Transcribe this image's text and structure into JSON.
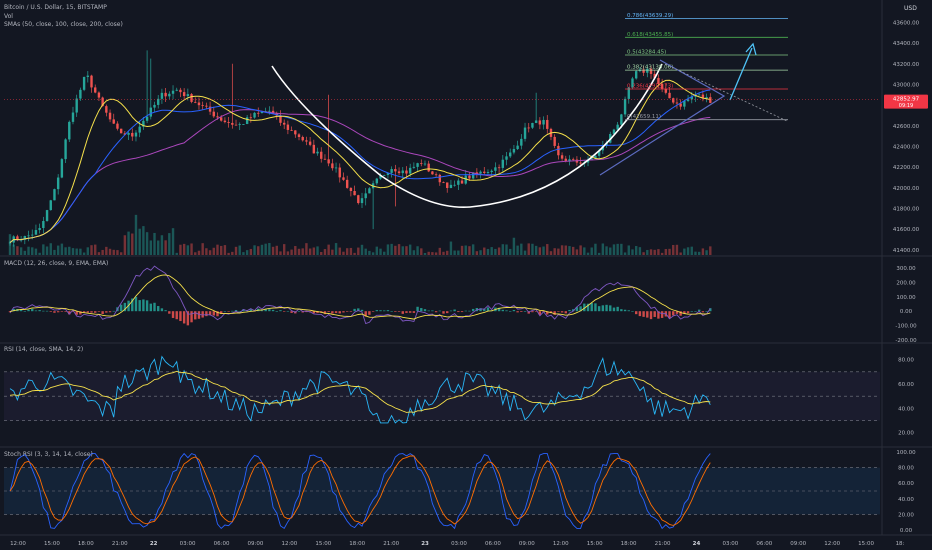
{
  "header": {
    "symbol": "Bitcoin / U.S. Dollar, 15, BITSTAMP",
    "vol": "Vol",
    "smas": "SMAs (50, close, 100, close, 200, close)",
    "currency": "USD"
  },
  "indicators": {
    "macd": "MACD (12, 26, close, 9, EMA, EMA)",
    "rsi": "RSI (14, close, SMA, 14, 2)",
    "stoch": "Stoch RSI (3, 3, 14, 14, close)"
  },
  "price": {
    "last": "42852.97",
    "countdown": "09:19",
    "ticks": [
      41400,
      41600,
      41800,
      42000,
      42200,
      42400,
      42600,
      42800,
      43000,
      43200,
      43400,
      43600
    ],
    "ticks_text": [
      "41400.00",
      "41600.00",
      "41800.00",
      "42000.00",
      "42200.00",
      "42400.00",
      "42600.00",
      "42800.00",
      "43000.00",
      "43200.00",
      "43400.00",
      "43600.00"
    ]
  },
  "fib": [
    {
      "label": "0.786(43639.29)",
      "value": 43639.29,
      "color": "#64b5f6"
    },
    {
      "label": "0.618(43455.85)",
      "value": 43455.85,
      "color": "#4caf50"
    },
    {
      "label": "0.5(43284.45)",
      "value": 43284.45,
      "color": "#81c784"
    },
    {
      "label": "0.382(43138.06)",
      "value": 43138.06,
      "color": "#a5d6a7"
    },
    {
      "label": "0.236(42955.73)",
      "value": 42955.73,
      "color": "#f23645"
    },
    {
      "label": "0(42659.11)",
      "value": 42659.11,
      "color": "#9598a1"
    }
  ],
  "macd": {
    "ticks": [
      300,
      200,
      100,
      0,
      -100,
      -200
    ],
    "ticks_text": [
      "300.00",
      "200.00",
      "100.00",
      "0.00",
      "-100.00",
      "-200.00"
    ]
  },
  "rsi": {
    "ticks": [
      80,
      60,
      40,
      20
    ],
    "ticks_text": [
      "80.00",
      "60.00",
      "40.00",
      "20.00"
    ]
  },
  "stoch": {
    "ticks": [
      100,
      80,
      60,
      40,
      20,
      0
    ],
    "ticks_text": [
      "100.00",
      "80.00",
      "60.00",
      "40.00",
      "20.00",
      "0.00"
    ]
  },
  "time_axis": [
    "12:00",
    "15:00",
    "18:00",
    "21:00",
    "22",
    "03:00",
    "06:00",
    "09:00",
    "12:00",
    "15:00",
    "18:00",
    "21:00",
    "23",
    "03:00",
    "06:00",
    "09:00",
    "12:00",
    "15:00",
    "18:00",
    "21:00",
    "24",
    "03:00",
    "06:00",
    "09:00",
    "12:00",
    "15:00",
    "18:"
  ],
  "chart_data": {
    "type": "candlestick",
    "symbol": "Bitcoin / U.S. Dollar",
    "interval": "15",
    "exchange": "BITSTAMP",
    "y_range": [
      41400,
      43700
    ],
    "last_price": 42852.97,
    "approx_closes": [
      41500,
      41520,
      41600,
      42000,
      42700,
      43100,
      42800,
      42550,
      42500,
      42700,
      42900,
      42950,
      42850,
      42750,
      42650,
      42600,
      42700,
      42750,
      42600,
      42500,
      42350,
      42250,
      42050,
      41850,
      42050,
      42200,
      42150,
      42250,
      42100,
      42000,
      42100,
      42150,
      42200,
      42350,
      42600,
      42650,
      42300,
      42250,
      42250,
      42400,
      42650,
      43100,
      43150,
      42900,
      42800,
      42900,
      42850
    ],
    "sma_series": [
      {
        "name": "SMA 50",
        "color": "#f5e04b"
      },
      {
        "name": "SMA 100",
        "color": "#2962ff"
      },
      {
        "name": "SMA 200",
        "color": "#ab47bc"
      }
    ],
    "patterns": [
      "cup",
      "symmetrical triangle",
      "fibonacci extension"
    ]
  }
}
